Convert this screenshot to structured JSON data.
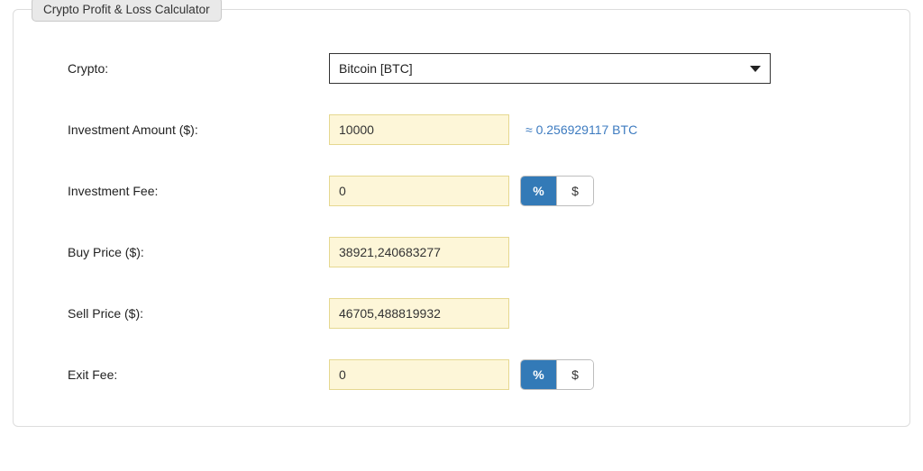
{
  "panel": {
    "title": "Crypto Profit & Loss Calculator"
  },
  "form": {
    "crypto": {
      "label": "Crypto:",
      "selected": "Bitcoin [BTC]"
    },
    "investment_amount": {
      "label": "Investment Amount ($):",
      "value": "10000",
      "conversion": "≈ 0.256929117 BTC"
    },
    "investment_fee": {
      "label": "Investment Fee:",
      "value": "0",
      "toggle": {
        "percent": "%",
        "dollar": "$",
        "active": "percent"
      }
    },
    "buy_price": {
      "label": "Buy Price ($):",
      "value": "38921,240683277"
    },
    "sell_price": {
      "label": "Sell Price ($):",
      "value": "46705,488819932"
    },
    "exit_fee": {
      "label": "Exit Fee:",
      "value": "0",
      "toggle": {
        "percent": "%",
        "dollar": "$",
        "active": "percent"
      }
    }
  },
  "styles": {
    "input_bg": "#fdf6d8",
    "input_border": "#e6d890",
    "toggle_active_bg": "#337ab7",
    "toggle_active_fg": "#ffffff",
    "link_color": "#3d7bc0",
    "legend_bg": "#e9e9e9",
    "legend_border": "#c9c9c9",
    "fieldset_border": "#dddddd"
  }
}
